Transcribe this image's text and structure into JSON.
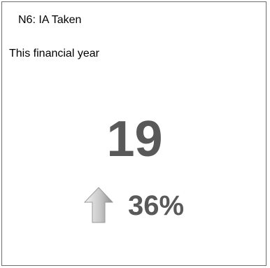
{
  "card": {
    "title": "N6: IA Taken",
    "subtitle": "This financial year",
    "value": "19",
    "trend": {
      "direction": "up",
      "icon": "arrow-up-icon",
      "change": "36%"
    }
  },
  "colors": {
    "metric_text": "#595959",
    "border": "#6e6e6e",
    "arrow_light": "#e6e6e6",
    "arrow_dark": "#8c8c8c"
  }
}
